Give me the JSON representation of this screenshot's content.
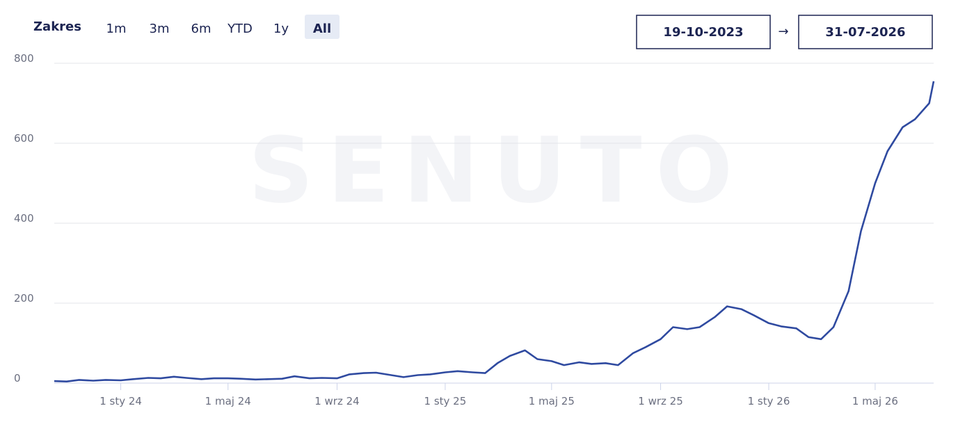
{
  "controls": {
    "range_label": "Zakres",
    "buttons": [
      "1m",
      "3m",
      "6m",
      "YTD",
      "1y",
      "All"
    ],
    "active": "All",
    "date_from": "19-10-2023",
    "arrow": "→",
    "date_to": "31-07-2026"
  },
  "chart_data": {
    "type": "line",
    "watermark": "SENUTO",
    "color": "#2f4aa0",
    "grid": true,
    "x": [
      "2023-10-18",
      "2023-11-01",
      "2023-11-15",
      "2023-12-01",
      "2023-12-15",
      "2024-01-01",
      "2024-01-15",
      "2024-02-01",
      "2024-02-15",
      "2024-03-01",
      "2024-03-15",
      "2024-04-01",
      "2024-04-15",
      "2024-05-01",
      "2024-05-15",
      "2024-06-01",
      "2024-06-15",
      "2024-07-01",
      "2024-07-15",
      "2024-08-01",
      "2024-08-15",
      "2024-09-01",
      "2024-09-15",
      "2024-10-01",
      "2024-10-15",
      "2024-11-01",
      "2024-11-15",
      "2024-12-01",
      "2024-12-15",
      "2025-01-01",
      "2025-01-15",
      "2025-02-01",
      "2025-02-15",
      "2025-03-01",
      "2025-03-15",
      "2025-04-01",
      "2025-04-15",
      "2025-05-01",
      "2025-05-15",
      "2025-06-01",
      "2025-06-15",
      "2025-07-01",
      "2025-07-15",
      "2025-08-01",
      "2025-08-15",
      "2025-09-01",
      "2025-09-15",
      "2025-10-01",
      "2025-10-15",
      "2025-11-01",
      "2025-11-15",
      "2025-12-01",
      "2025-12-15",
      "2026-01-01",
      "2026-01-15",
      "2026-02-01",
      "2026-02-15",
      "2026-03-01",
      "2026-03-15",
      "2026-04-01",
      "2026-04-15",
      "2026-05-01",
      "2026-05-15",
      "2026-06-01",
      "2026-06-15",
      "2026-07-01",
      "2026-07-06"
    ],
    "values": [
      5,
      4,
      8,
      6,
      8,
      7,
      10,
      13,
      12,
      16,
      13,
      10,
      12,
      12,
      11,
      9,
      10,
      11,
      17,
      12,
      13,
      12,
      22,
      25,
      26,
      20,
      15,
      20,
      22,
      27,
      30,
      27,
      25,
      50,
      68,
      82,
      60,
      55,
      45,
      52,
      48,
      50,
      45,
      75,
      90,
      110,
      140,
      135,
      140,
      165,
      192,
      185,
      170,
      150,
      142,
      137,
      115,
      110,
      140,
      230,
      380,
      500,
      580,
      640,
      660,
      700,
      755
    ],
    "xlim": [
      "2023-10-18",
      "2026-07-06"
    ],
    "xticks": [
      {
        "value": "2024-01-01",
        "label": "1 sty 24"
      },
      {
        "value": "2024-05-01",
        "label": "1 maj 24"
      },
      {
        "value": "2024-09-01",
        "label": "1 wrz 24"
      },
      {
        "value": "2025-01-01",
        "label": "1 sty 25"
      },
      {
        "value": "2025-05-01",
        "label": "1 maj 25"
      },
      {
        "value": "2025-09-01",
        "label": "1 wrz 25"
      },
      {
        "value": "2026-01-01",
        "label": "1 sty 26"
      },
      {
        "value": "2026-05-01",
        "label": "1 maj 26"
      }
    ],
    "ylim": [
      0,
      800
    ],
    "yticks": [
      0,
      200,
      400,
      600,
      800
    ]
  }
}
